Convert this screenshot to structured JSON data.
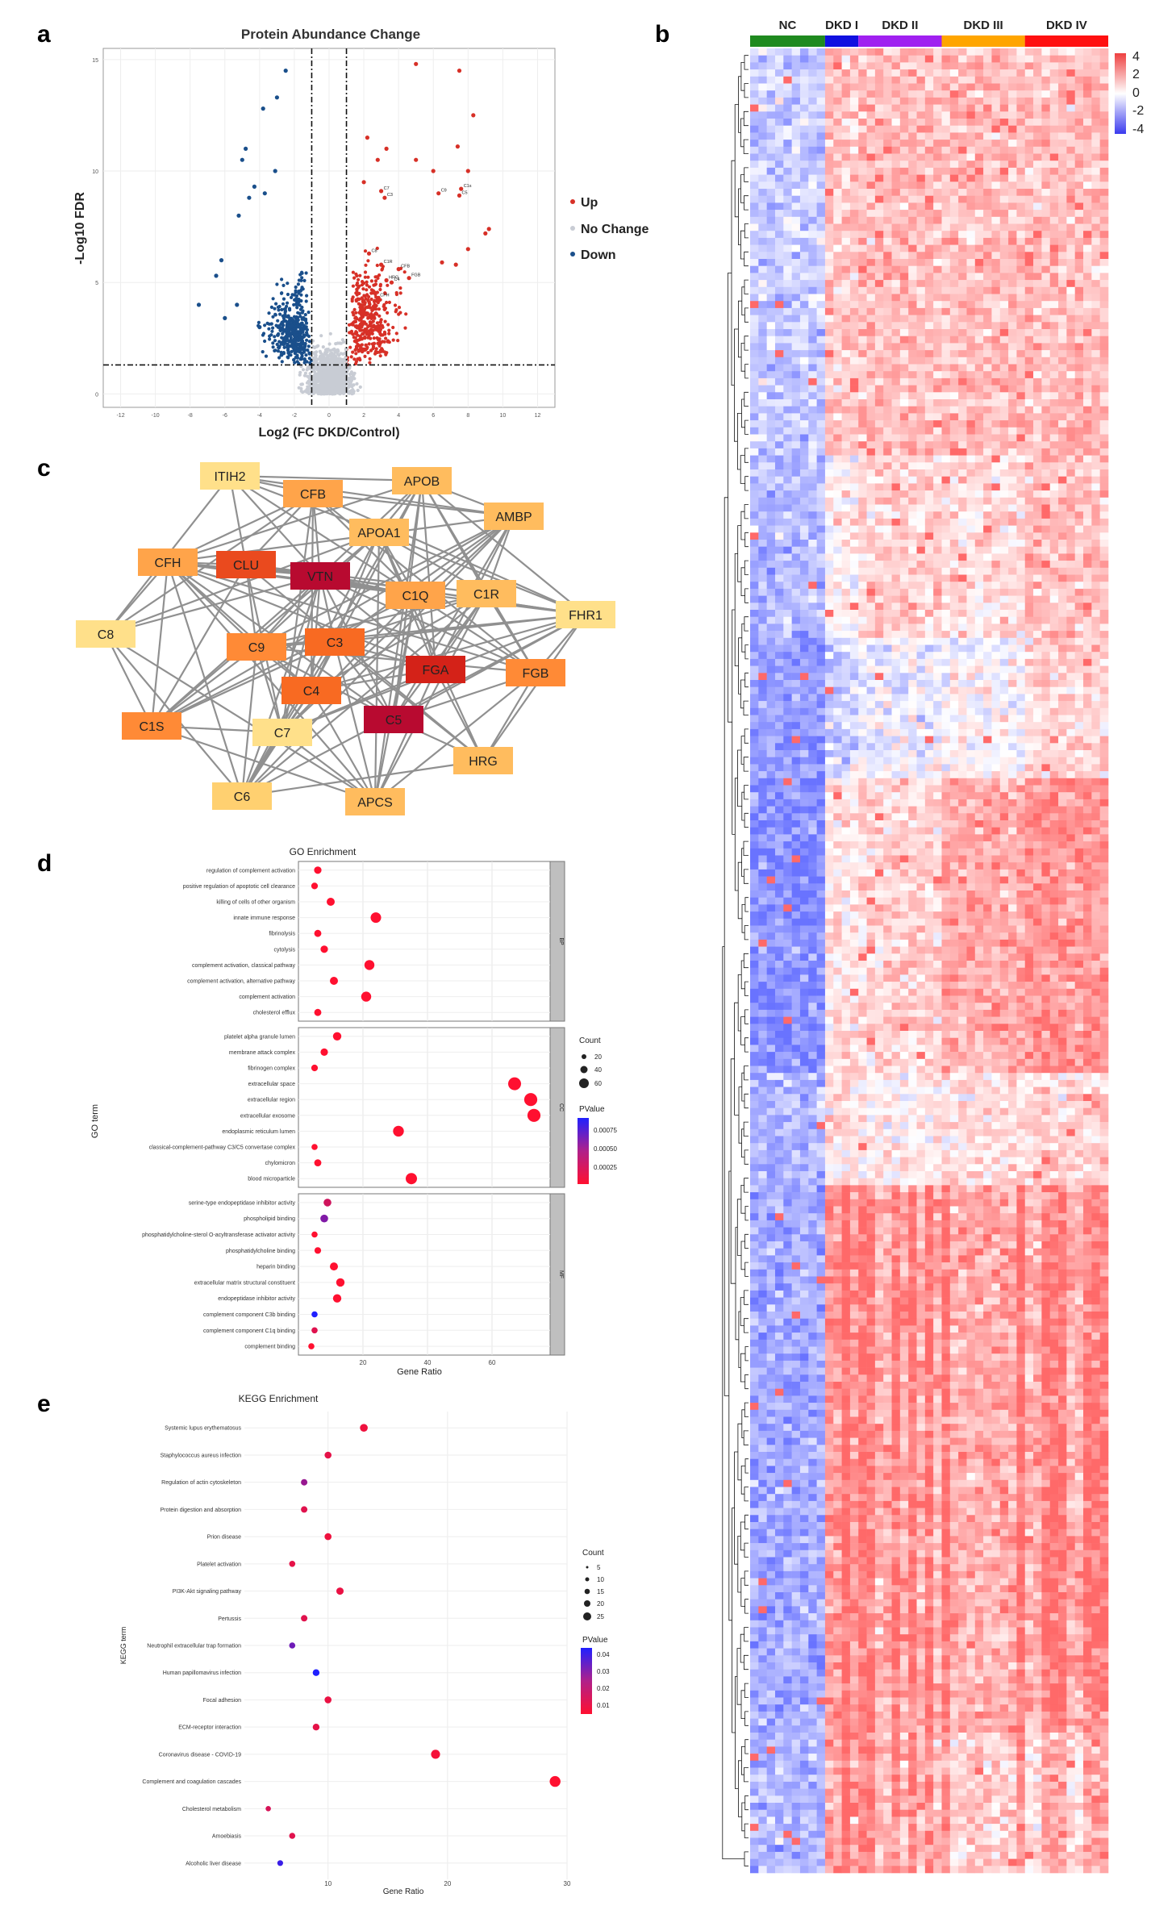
{
  "panels": {
    "a": "a",
    "b": "b",
    "c": "c",
    "d": "d",
    "e": "e"
  },
  "colors": {
    "up": "#d73027",
    "down": "#1a4f8b",
    "nochange": "#c8ccd4",
    "hm_high": "#ff0000",
    "hm_low": "#0000ff",
    "nc": "#1f8a1f",
    "dkd1": "#1010e0",
    "dkd2": "#a020f0",
    "dkd3": "#ffa500",
    "dkd4": "#ff1010"
  },
  "chart_data": [
    {
      "id": "volcano",
      "type": "scatter",
      "title": "Protein Abundance Change",
      "xlabel": "Log2 (FC DKD/Control)",
      "ylabel": "-Log10 FDR",
      "xlim": [
        -13,
        13
      ],
      "ylim": [
        -0.6,
        15.5
      ],
      "xticks": [
        "-12",
        "-10",
        "-8",
        "-6",
        "-4",
        "-2",
        "0",
        "2",
        "4",
        "6",
        "8",
        "10",
        "12"
      ],
      "yticks": [
        "0",
        "5",
        "10",
        "15"
      ],
      "thresholds": {
        "fc": [
          -1,
          1
        ],
        "fdr": 1.3
      },
      "legend": [
        "Up",
        "No Change",
        "Down"
      ],
      "labeled_points": [
        {
          "label": "C1s",
          "x": 7.6,
          "y": 9.2
        },
        {
          "label": "C5",
          "x": 7.5,
          "y": 8.9
        },
        {
          "label": "C9",
          "x": 6.3,
          "y": 9.0
        },
        {
          "label": "C7",
          "x": 3.0,
          "y": 9.1
        },
        {
          "label": "C3",
          "x": 3.2,
          "y": 8.8
        },
        {
          "label": "C8",
          "x": 2.3,
          "y": 6.3
        },
        {
          "label": "C1R",
          "x": 3.0,
          "y": 5.8
        },
        {
          "label": "CFB",
          "x": 4.0,
          "y": 5.6
        },
        {
          "label": "FGB",
          "x": 4.6,
          "y": 5.2
        },
        {
          "label": "HRG",
          "x": 3.3,
          "y": 5.1
        },
        {
          "label": "C4",
          "x": 3.6,
          "y": 5.0
        },
        {
          "label": "CFH",
          "x": 2.8,
          "y": 4.3
        }
      ],
      "highlight_points": {
        "up": [
          [
            5.0,
            14.8
          ],
          [
            7.5,
            14.5
          ],
          [
            8.3,
            12.5
          ],
          [
            7.4,
            11.1
          ],
          [
            8.0,
            10.0
          ],
          [
            9.2,
            7.4
          ],
          [
            9.0,
            7.2
          ],
          [
            8.0,
            6.5
          ],
          [
            7.3,
            5.8
          ],
          [
            6.5,
            5.9
          ],
          [
            2.2,
            11.5
          ],
          [
            3.3,
            11.0
          ],
          [
            2.8,
            10.5
          ],
          [
            2.0,
            9.5
          ],
          [
            5.0,
            10.5
          ],
          [
            6.0,
            10.0
          ]
        ],
        "down": [
          [
            -2.5,
            14.5
          ],
          [
            -3.0,
            13.3
          ],
          [
            -3.8,
            12.8
          ],
          [
            -4.8,
            11.0
          ],
          [
            -5.0,
            10.5
          ],
          [
            -4.3,
            9.3
          ],
          [
            -3.1,
            10.0
          ],
          [
            -3.7,
            9.0
          ],
          [
            -4.6,
            8.8
          ],
          [
            -5.2,
            8.0
          ],
          [
            -6.2,
            6.0
          ],
          [
            -6.5,
            5.3
          ],
          [
            -7.5,
            4.0
          ],
          [
            -5.3,
            4.0
          ],
          [
            -6.0,
            3.4
          ],
          [
            -4.0,
            3.0
          ]
        ]
      }
    },
    {
      "id": "heatmap",
      "type": "heatmap",
      "groups": [
        {
          "label": "NC",
          "n": 9
        },
        {
          "label": "DKD I",
          "n": 4
        },
        {
          "label": "DKD II",
          "n": 10
        },
        {
          "label": "DKD III",
          "n": 10
        },
        {
          "label": "DKD IV",
          "n": 10
        }
      ],
      "rows": 260,
      "legend_ticks": [
        "4",
        "2",
        "0",
        "-2",
        "-4"
      ],
      "zlim": [
        -4,
        4
      ]
    },
    {
      "id": "network",
      "type": "network",
      "nodes": [
        {
          "id": "ITIH2",
          "score": 1
        },
        {
          "id": "CFB",
          "score": 4
        },
        {
          "id": "APOB",
          "score": 3
        },
        {
          "id": "APOA1",
          "score": 3
        },
        {
          "id": "AMBP",
          "score": 3
        },
        {
          "id": "CFH",
          "score": 4
        },
        {
          "id": "CLU",
          "score": 7
        },
        {
          "id": "VTN",
          "score": 9
        },
        {
          "id": "C1Q",
          "score": 4
        },
        {
          "id": "C1R",
          "score": 3
        },
        {
          "id": "C8",
          "score": 1
        },
        {
          "id": "FHR1",
          "score": 1
        },
        {
          "id": "C9",
          "score": 5
        },
        {
          "id": "C3",
          "score": 6
        },
        {
          "id": "FGA",
          "score": 8
        },
        {
          "id": "FGB",
          "score": 5
        },
        {
          "id": "C4",
          "score": 6
        },
        {
          "id": "C1S",
          "score": 5
        },
        {
          "id": "C7",
          "score": 1
        },
        {
          "id": "C5",
          "score": 9
        },
        {
          "id": "HRG",
          "score": 3
        },
        {
          "id": "C6",
          "score": 2
        },
        {
          "id": "APCS",
          "score": 3
        }
      ]
    },
    {
      "id": "go",
      "type": "scatter",
      "title": "GO Enrichment",
      "xlabel": "Gene Ratio",
      "ylabel": "GO term",
      "xlim": [
        0,
        78
      ],
      "xticks": [
        "20",
        "40",
        "60"
      ],
      "facets": [
        {
          "label": "BP",
          "terms": [
            {
              "term": "regulation of complement activation",
              "ratio": 6,
              "count": 12,
              "p": 0.0002
            },
            {
              "term": "positive regulation of apoptotic cell clearance",
              "ratio": 5,
              "count": 8,
              "p": 0.0002
            },
            {
              "term": "killing of cells of other organism",
              "ratio": 10,
              "count": 16,
              "p": 0.0002
            },
            {
              "term": "innate immune response",
              "ratio": 24,
              "count": 36,
              "p": 0.0002
            },
            {
              "term": "fibrinolysis",
              "ratio": 6,
              "count": 10,
              "p": 0.0002
            },
            {
              "term": "cytolysis",
              "ratio": 8,
              "count": 12,
              "p": 0.0002
            },
            {
              "term": "complement activation, classical pathway",
              "ratio": 22,
              "count": 32,
              "p": 0.0002
            },
            {
              "term": "complement activation, alternative pathway",
              "ratio": 11,
              "count": 16,
              "p": 0.0002
            },
            {
              "term": "complement activation",
              "ratio": 21,
              "count": 32,
              "p": 0.0002
            },
            {
              "term": "cholesterol efflux",
              "ratio": 6,
              "count": 10,
              "p": 0.0002
            }
          ]
        },
        {
          "label": "CC",
          "terms": [
            {
              "term": "platelet alpha granule lumen",
              "ratio": 12,
              "count": 18,
              "p": 0.0002
            },
            {
              "term": "membrane attack complex",
              "ratio": 8,
              "count": 12,
              "p": 0.0002
            },
            {
              "term": "fibrinogen complex",
              "ratio": 5,
              "count": 8,
              "p": 0.0002
            },
            {
              "term": "extracellular space",
              "ratio": 67,
              "count": 64,
              "p": 0.0002
            },
            {
              "term": "extracellular region",
              "ratio": 72,
              "count": 66,
              "p": 0.0002
            },
            {
              "term": "extracellular exosome",
              "ratio": 73,
              "count": 66,
              "p": 0.0002
            },
            {
              "term": "endoplasmic reticulum lumen",
              "ratio": 31,
              "count": 40,
              "p": 0.0002
            },
            {
              "term": "classical-complement-pathway C3/C5 convertase complex",
              "ratio": 5,
              "count": 6,
              "p": 0.0002
            },
            {
              "term": "chylomicron",
              "ratio": 6,
              "count": 10,
              "p": 0.0002
            },
            {
              "term": "blood microparticle",
              "ratio": 35,
              "count": 44,
              "p": 0.0002
            }
          ]
        },
        {
          "label": "MF",
          "terms": [
            {
              "term": "serine-type endopeptidase inhibitor activity",
              "ratio": 9,
              "count": 14,
              "p": 0.00035
            },
            {
              "term": "phospholipid binding",
              "ratio": 8,
              "count": 14,
              "p": 0.0006
            },
            {
              "term": "phosphatidylcholine-sterol O-acyltransferase activator activity",
              "ratio": 5,
              "count": 6,
              "p": 0.0002
            },
            {
              "term": "phosphatidylcholine binding",
              "ratio": 6,
              "count": 8,
              "p": 0.0002
            },
            {
              "term": "heparin binding",
              "ratio": 11,
              "count": 16,
              "p": 0.0002
            },
            {
              "term": "extracellular matrix structural constituent",
              "ratio": 13,
              "count": 18,
              "p": 0.0002
            },
            {
              "term": "endopeptidase inhibitor activity",
              "ratio": 12,
              "count": 18,
              "p": 0.0002
            },
            {
              "term": "complement component C3b binding",
              "ratio": 5,
              "count": 6,
              "p": 0.0009
            },
            {
              "term": "complement component C1q binding",
              "ratio": 5,
              "count": 6,
              "p": 0.0003
            },
            {
              "term": "complement binding",
              "ratio": 4,
              "count": 6,
              "p": 0.0002
            }
          ]
        }
      ],
      "size_legend": {
        "title": "Count",
        "values": [
          "20",
          "40",
          "60"
        ]
      },
      "color_legend": {
        "title": "PValue",
        "values": [
          "0.00075",
          "0.00050",
          "0.00025"
        ]
      }
    },
    {
      "id": "kegg",
      "type": "scatter",
      "title": "KEGG Enrichment",
      "xlabel": "Gene Ratio",
      "ylabel": "KEGG term",
      "xlim": [
        3,
        30
      ],
      "xticks": [
        "10",
        "20",
        "30"
      ],
      "terms": [
        {
          "term": "Systemic lupus erythematosus",
          "ratio": 13,
          "count": 13,
          "p": 0.005
        },
        {
          "term": "Staphylococcus aureus infection",
          "ratio": 10,
          "count": 10,
          "p": 0.007
        },
        {
          "term": "Regulation of actin cytoskeleton",
          "ratio": 8,
          "count": 8,
          "p": 0.022
        },
        {
          "term": "Protein digestion and absorption",
          "ratio": 8,
          "count": 8,
          "p": 0.008
        },
        {
          "term": "Prion disease",
          "ratio": 10,
          "count": 10,
          "p": 0.005
        },
        {
          "term": "Platelet activation",
          "ratio": 7,
          "count": 7,
          "p": 0.007
        },
        {
          "term": "PI3K-Akt signaling pathway",
          "ratio": 11,
          "count": 11,
          "p": 0.006
        },
        {
          "term": "Pertussis",
          "ratio": 8,
          "count": 8,
          "p": 0.008
        },
        {
          "term": "Neutrophil extracellular trap formation",
          "ratio": 7,
          "count": 7,
          "p": 0.03
        },
        {
          "term": "Human papillomavirus infection",
          "ratio": 9,
          "count": 9,
          "p": 0.045
        },
        {
          "term": "Focal adhesion",
          "ratio": 10,
          "count": 10,
          "p": 0.006
        },
        {
          "term": "ECM-receptor interaction",
          "ratio": 9,
          "count": 9,
          "p": 0.007
        },
        {
          "term": "Coronavirus disease - COVID-19",
          "ratio": 19,
          "count": 19,
          "p": 0.004
        },
        {
          "term": "Complement and coagulation cascades",
          "ratio": 29,
          "count": 29,
          "p": 0.002
        },
        {
          "term": "Cholesterol metabolism",
          "ratio": 5,
          "count": 5,
          "p": 0.01
        },
        {
          "term": "Amoebiasis",
          "ratio": 7,
          "count": 7,
          "p": 0.008
        },
        {
          "term": "Alcoholic liver disease",
          "ratio": 6,
          "count": 6,
          "p": 0.04
        }
      ],
      "size_legend": {
        "title": "Count",
        "values": [
          "5",
          "10",
          "15",
          "20",
          "25"
        ]
      },
      "color_legend": {
        "title": "PValue",
        "values": [
          "0.04",
          "0.03",
          "0.02",
          "0.01"
        ]
      }
    }
  ]
}
